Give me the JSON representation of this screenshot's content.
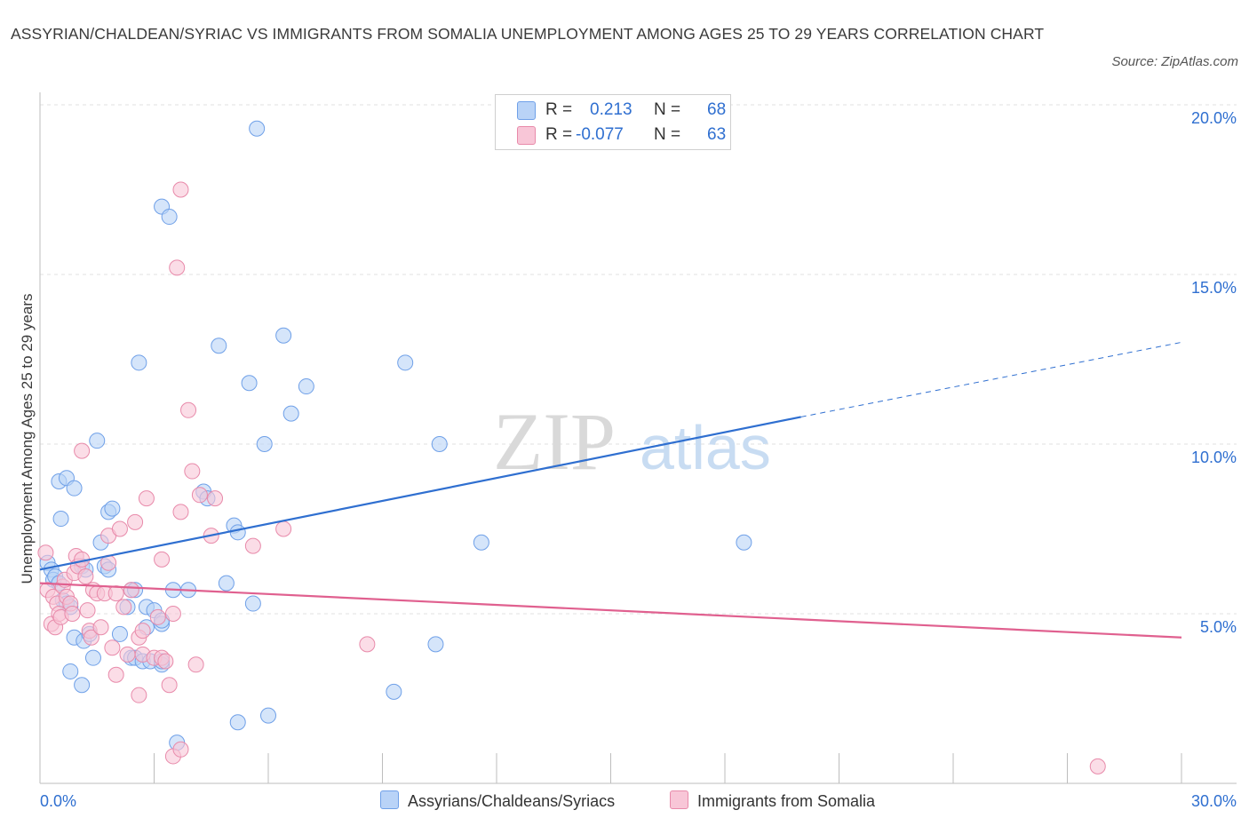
{
  "title": "ASSYRIAN/CHALDEAN/SYRIAC VS IMMIGRANTS FROM SOMALIA UNEMPLOYMENT AMONG AGES 25 TO 29 YEARS CORRELATION CHART",
  "source": "Source: ZipAtlas.com",
  "watermark": {
    "zip": "ZIP",
    "atlas": "atlas"
  },
  "legend": {
    "r_label": "R =",
    "n_label": "N =",
    "rows": [
      {
        "r": "0.213",
        "n": "68",
        "color": "#a8c8f5"
      },
      {
        "r": "-0.077",
        "n": "63",
        "color": "#f5b8cc"
      }
    ]
  },
  "chart_data": {
    "type": "scatter",
    "title": "ASSYRIAN/CHALDEAN/SYRIAC VS IMMIGRANTS FROM SOMALIA UNEMPLOYMENT AMONG AGES 25 TO 29 YEARS CORRELATION CHART",
    "xlabel": "",
    "ylabel": "Unemployment Among Ages 25 to 29 years",
    "xlim": [
      0,
      30
    ],
    "ylim": [
      0,
      20
    ],
    "x_tick_labels": [
      "0.0%",
      "30.0%"
    ],
    "y_tick_labels": [
      "5.0%",
      "10.0%",
      "15.0%",
      "20.0%"
    ],
    "y_ticks": [
      5,
      10,
      15,
      20
    ],
    "grid": true,
    "legend_position": "top-center",
    "series": [
      {
        "name": "Assyrians/Chaldeans/Syriacs",
        "color": "#6fa0e8",
        "fill": "#b9d3f7",
        "trend": {
          "x0": 0,
          "y0": 6.3,
          "x1": 20.0,
          "y1": 10.8,
          "dashed_to_x": 30,
          "dashed_to_y": 13.0,
          "color": "#2f6fd0"
        },
        "points": [
          [
            0.2,
            6.5
          ],
          [
            0.3,
            6.3
          ],
          [
            0.35,
            6.0
          ],
          [
            0.4,
            6.1
          ],
          [
            0.5,
            5.9
          ],
          [
            0.6,
            5.4
          ],
          [
            0.7,
            5.3
          ],
          [
            0.8,
            5.2
          ],
          [
            0.5,
            8.9
          ],
          [
            0.55,
            7.8
          ],
          [
            0.7,
            9.0
          ],
          [
            0.9,
            8.7
          ],
          [
            0.9,
            4.3
          ],
          [
            1.1,
            6.4
          ],
          [
            1.15,
            4.2
          ],
          [
            1.2,
            6.3
          ],
          [
            1.3,
            4.4
          ],
          [
            1.4,
            3.7
          ],
          [
            1.5,
            10.1
          ],
          [
            1.6,
            7.1
          ],
          [
            1.7,
            6.4
          ],
          [
            1.8,
            8.0
          ],
          [
            1.9,
            8.1
          ],
          [
            1.8,
            6.3
          ],
          [
            2.1,
            4.4
          ],
          [
            2.3,
            5.2
          ],
          [
            2.4,
            5.7
          ],
          [
            2.5,
            5.7
          ],
          [
            2.4,
            3.7
          ],
          [
            2.5,
            3.7
          ],
          [
            2.6,
            12.4
          ],
          [
            2.7,
            3.6
          ],
          [
            2.8,
            5.2
          ],
          [
            2.8,
            4.6
          ],
          [
            2.9,
            3.6
          ],
          [
            3.0,
            5.1
          ],
          [
            3.2,
            4.7
          ],
          [
            3.2,
            4.8
          ],
          [
            3.2,
            3.5
          ],
          [
            3.2,
            3.6
          ],
          [
            3.2,
            17.0
          ],
          [
            3.4,
            16.7
          ],
          [
            3.5,
            5.7
          ],
          [
            3.6,
            1.2
          ],
          [
            3.9,
            5.7
          ],
          [
            4.3,
            8.6
          ],
          [
            4.4,
            8.4
          ],
          [
            4.7,
            12.9
          ],
          [
            4.9,
            5.9
          ],
          [
            5.1,
            7.6
          ],
          [
            5.2,
            7.4
          ],
          [
            5.2,
            1.8
          ],
          [
            5.5,
            11.8
          ],
          [
            5.6,
            5.3
          ],
          [
            5.7,
            19.3
          ],
          [
            5.9,
            10.0
          ],
          [
            6.0,
            2.0
          ],
          [
            6.4,
            13.2
          ],
          [
            6.6,
            10.9
          ],
          [
            7.0,
            11.7
          ],
          [
            9.6,
            12.4
          ],
          [
            10.5,
            10.0
          ],
          [
            9.3,
            2.7
          ],
          [
            10.4,
            4.1
          ],
          [
            11.6,
            7.1
          ],
          [
            18.5,
            7.1
          ],
          [
            1.1,
            2.9
          ],
          [
            0.8,
            3.3
          ]
        ]
      },
      {
        "name": "Immigrants from Somalia",
        "color": "#e88aaa",
        "fill": "#f8c6d7",
        "trend": {
          "x0": 0,
          "y0": 5.9,
          "x1": 30,
          "y1": 4.3,
          "color": "#e0608f"
        },
        "points": [
          [
            0.15,
            6.8
          ],
          [
            0.2,
            5.7
          ],
          [
            0.3,
            4.7
          ],
          [
            0.35,
            5.5
          ],
          [
            0.4,
            4.6
          ],
          [
            0.45,
            5.3
          ],
          [
            0.5,
            5.0
          ],
          [
            0.55,
            4.9
          ],
          [
            0.6,
            5.8
          ],
          [
            0.65,
            6.0
          ],
          [
            0.7,
            5.5
          ],
          [
            0.8,
            5.3
          ],
          [
            0.85,
            5.0
          ],
          [
            0.9,
            6.2
          ],
          [
            0.95,
            6.7
          ],
          [
            1.0,
            6.4
          ],
          [
            1.1,
            6.6
          ],
          [
            1.1,
            9.8
          ],
          [
            1.2,
            6.1
          ],
          [
            1.25,
            5.1
          ],
          [
            1.3,
            4.5
          ],
          [
            1.35,
            4.3
          ],
          [
            1.4,
            5.7
          ],
          [
            1.5,
            5.6
          ],
          [
            1.6,
            4.6
          ],
          [
            1.7,
            5.6
          ],
          [
            1.8,
            6.5
          ],
          [
            1.8,
            7.3
          ],
          [
            1.9,
            4.0
          ],
          [
            2.0,
            5.6
          ],
          [
            2.0,
            3.2
          ],
          [
            2.1,
            7.5
          ],
          [
            2.2,
            5.2
          ],
          [
            2.3,
            3.8
          ],
          [
            2.4,
            5.7
          ],
          [
            2.5,
            7.7
          ],
          [
            2.6,
            2.6
          ],
          [
            2.6,
            4.3
          ],
          [
            2.7,
            3.8
          ],
          [
            2.7,
            4.5
          ],
          [
            2.8,
            8.4
          ],
          [
            3.0,
            3.7
          ],
          [
            3.1,
            4.9
          ],
          [
            3.2,
            6.6
          ],
          [
            3.2,
            3.7
          ],
          [
            3.3,
            3.6
          ],
          [
            3.4,
            2.9
          ],
          [
            3.5,
            5.0
          ],
          [
            3.6,
            15.2
          ],
          [
            3.7,
            17.5
          ],
          [
            3.7,
            8.0
          ],
          [
            3.9,
            11.0
          ],
          [
            4.0,
            9.2
          ],
          [
            4.1,
            3.5
          ],
          [
            4.2,
            8.5
          ],
          [
            4.5,
            7.3
          ],
          [
            4.6,
            8.4
          ],
          [
            5.6,
            7.0
          ],
          [
            6.4,
            7.5
          ],
          [
            3.5,
            0.8
          ],
          [
            3.7,
            1.0
          ],
          [
            8.6,
            4.1
          ],
          [
            27.8,
            0.5
          ]
        ]
      }
    ]
  },
  "bottom_legend": [
    "Assyrians/Chaldeans/Syriacs",
    "Immigrants from Somalia"
  ]
}
